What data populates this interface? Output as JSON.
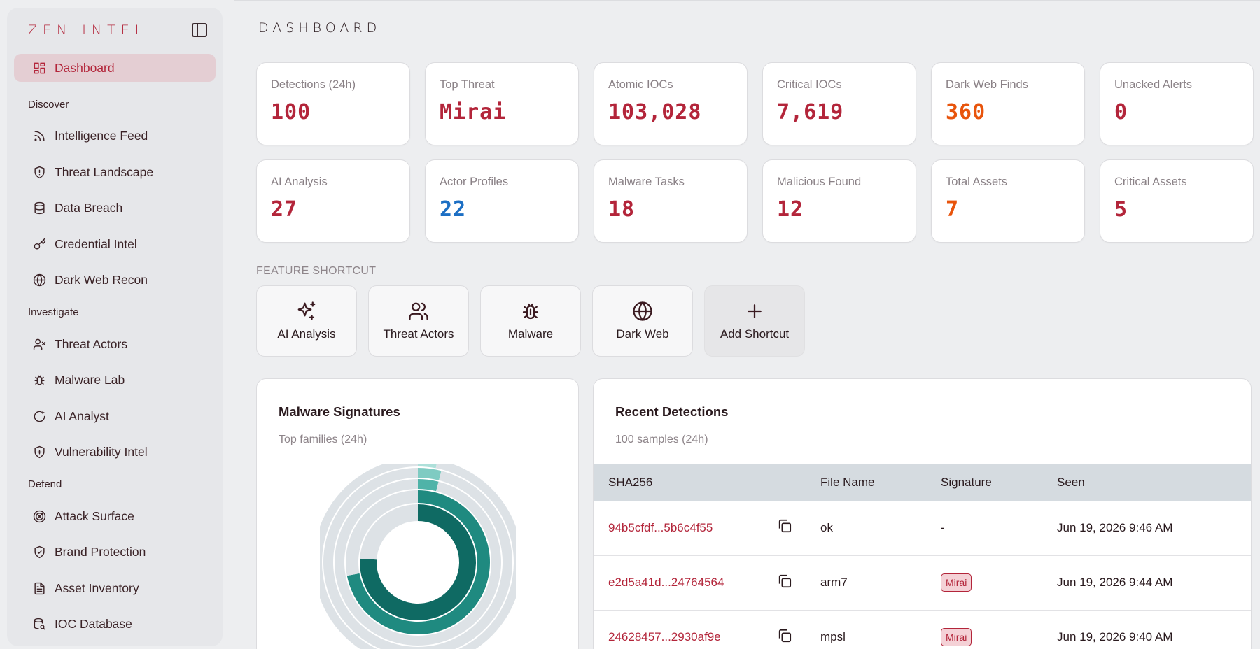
{
  "brand": {
    "logo": "ZEN INTEL"
  },
  "sidebar": {
    "dashboard": "Dashboard",
    "sections": [
      {
        "title": "Discover",
        "items": [
          "Intelligence Feed",
          "Threat Landscape",
          "Data Breach",
          "Credential Intel",
          "Dark Web Recon"
        ]
      },
      {
        "title": "Investigate",
        "items": [
          "Threat Actors",
          "Malware Lab",
          "AI Analyst",
          "Vulnerability Intel"
        ]
      },
      {
        "title": "Defend",
        "items": [
          "Attack Surface",
          "Brand Protection",
          "Asset Inventory",
          "IOC Database"
        ]
      }
    ]
  },
  "header": {
    "title": "DASHBOARD"
  },
  "stats": [
    {
      "label": "Detections (24h)",
      "value": "100",
      "color": "#b3253a"
    },
    {
      "label": "Top Threat",
      "value": "Mirai",
      "color": "#b3253a"
    },
    {
      "label": "Atomic IOCs",
      "value": "103,028",
      "color": "#b3253a"
    },
    {
      "label": "Critical IOCs",
      "value": "7,619",
      "color": "#b3253a"
    },
    {
      "label": "Dark Web Finds",
      "value": "360",
      "color": "#e8540c"
    },
    {
      "label": "Unacked Alerts",
      "value": "0",
      "color": "#b3253a"
    },
    {
      "label": "AI Analysis",
      "value": "27",
      "color": "#b3253a"
    },
    {
      "label": "Actor Profiles",
      "value": "22",
      "color": "#1c6fc4"
    },
    {
      "label": "Malware Tasks",
      "value": "18",
      "color": "#b3253a"
    },
    {
      "label": "Malicious Found",
      "value": "12",
      "color": "#b3253a"
    },
    {
      "label": "Total Assets",
      "value": "7",
      "color": "#e8540c"
    },
    {
      "label": "Critical Assets",
      "value": "5",
      "color": "#b3253a"
    }
  ],
  "shortcuts": {
    "label": "FEATURE SHORTCUT",
    "items": [
      {
        "label": "AI Analysis",
        "icon": "sparkles-icon"
      },
      {
        "label": "Threat Actors",
        "icon": "users-icon"
      },
      {
        "label": "Malware",
        "icon": "bug-icon"
      },
      {
        "label": "Dark Web",
        "icon": "globe-icon"
      },
      {
        "label": "Add Shortcut",
        "icon": "plus-icon"
      }
    ]
  },
  "malware_card": {
    "title": "Malware Signatures",
    "subtitle": "Top families (24h)"
  },
  "recent_card": {
    "title": "Recent Detections",
    "subtitle": "100 samples (24h)",
    "columns": [
      "SHA256",
      "",
      "File Name",
      "Signature",
      "Seen"
    ],
    "rows": [
      {
        "hash": "94b5cfdf...5b6c4f55",
        "file": "ok",
        "signature": "-",
        "seen": "Jun 19, 2026 9:46 AM"
      },
      {
        "hash": "e2d5a41d...24764564",
        "file": "arm7",
        "signature": "Mirai",
        "seen": "Jun 19, 2026 9:44 AM"
      },
      {
        "hash": "24628457...2930af9e",
        "file": "mpsl",
        "signature": "Mirai",
        "seen": "Jun 19, 2026 9:40 AM"
      }
    ]
  },
  "chart_data": {
    "type": "pie",
    "title": "Malware Signatures",
    "subtitle": "Top families (24h)",
    "rings": [
      {
        "values": [
          0.76,
          0.24
        ],
        "colors": [
          "#0f6a63",
          "#dde2e6"
        ]
      },
      {
        "values": [
          0.72,
          0.28
        ],
        "colors": [
          "#1f8a80",
          "#dde2e6"
        ]
      },
      {
        "values": [
          0.04,
          0.96
        ],
        "colors": [
          "#4fb3a8",
          "#dde2e6"
        ]
      },
      {
        "values": [
          0.04,
          0.96
        ],
        "colors": [
          "#7fcbc2",
          "#dde2e6"
        ]
      },
      {
        "values": [
          0.03,
          0.97
        ],
        "colors": [
          "#aee0da",
          "#dde2e6"
        ]
      }
    ]
  }
}
